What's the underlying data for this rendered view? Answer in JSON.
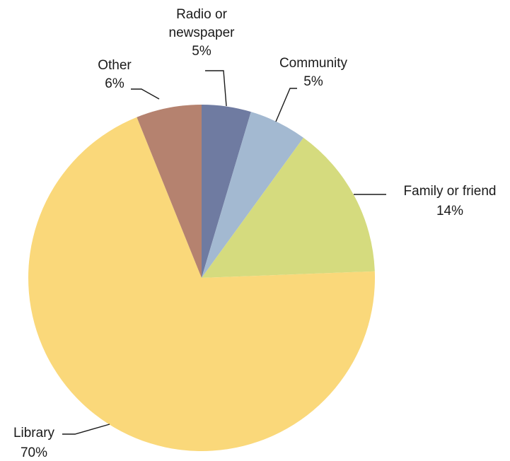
{
  "chart_data": {
    "type": "pie",
    "start_angle_deg": 0,
    "direction": "clockwise",
    "slices": [
      {
        "name": "Radio or newspaper",
        "label_lines": [
          "Radio or",
          "newspaper"
        ],
        "value": 4.6,
        "pct_label": "5%",
        "color": "#6f7ba1"
      },
      {
        "name": "Community",
        "label_lines": [
          "Community"
        ],
        "value": 5.4,
        "pct_label": "5%",
        "color": "#a3b9d1"
      },
      {
        "name": "Family or friend",
        "label_lines": [
          "Family or friend"
        ],
        "value": 14.4,
        "pct_label": "14%",
        "color": "#d5db7e"
      },
      {
        "name": "Library",
        "label_lines": [
          "Library"
        ],
        "value": 69.5,
        "pct_label": "70%",
        "color": "#fad87a"
      },
      {
        "name": "Other",
        "label_lines": [
          "Other"
        ],
        "value": 6.1,
        "pct_label": "6%",
        "color": "#b5826f"
      }
    ]
  }
}
